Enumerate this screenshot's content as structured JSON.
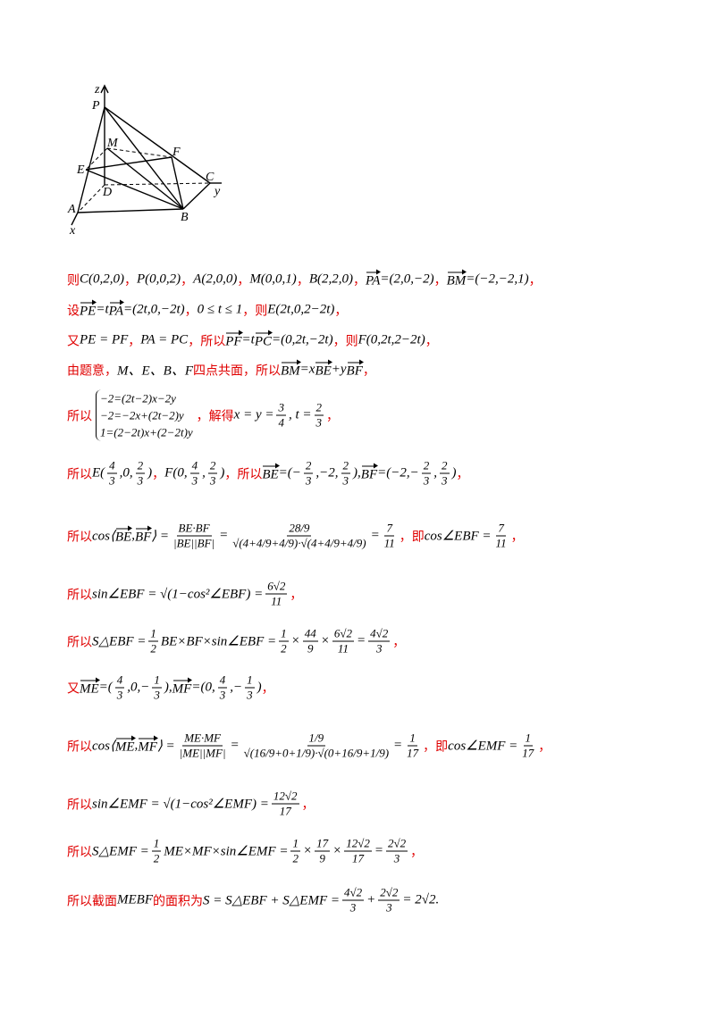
{
  "figure": {
    "labels": [
      "z",
      "P",
      "M",
      "F",
      "E",
      "C",
      "y",
      "D",
      "A",
      "B",
      "x"
    ]
  },
  "lines": [
    {
      "segs": [
        {
          "c": "则"
        },
        {
          "m": "C(0,2,0)"
        },
        {
          "c": "，"
        },
        {
          "m": "P(0,0,2)"
        },
        {
          "c": "，"
        },
        {
          "m": "A(2,0,0)"
        },
        {
          "c": "，"
        },
        {
          "m": "M(0,0,1)"
        },
        {
          "c": "，"
        },
        {
          "m": "B(2,2,0)"
        },
        {
          "c": "，"
        },
        {
          "v": "PA"
        },
        {
          "m": "=(2,0,−2)"
        },
        {
          "c": "，"
        },
        {
          "v": "BM"
        },
        {
          "m": "=(−2,−2,1)"
        },
        {
          "c": "，"
        }
      ]
    },
    {
      "segs": [
        {
          "c": "设"
        },
        {
          "v": "PE"
        },
        {
          "m": "=t"
        },
        {
          "v": "PA"
        },
        {
          "m": "=(2t,0,−2t)"
        },
        {
          "c": "，"
        },
        {
          "m": "0 ≤ t ≤ 1"
        },
        {
          "c": "，则"
        },
        {
          "m": "E(2t,0,2−2t)"
        },
        {
          "c": "，"
        }
      ]
    },
    {
      "segs": [
        {
          "c": "又"
        },
        {
          "m": "PE = PF"
        },
        {
          "c": "，"
        },
        {
          "m": "PA = PC"
        },
        {
          "c": "，所以"
        },
        {
          "v": "PF"
        },
        {
          "m": "=t"
        },
        {
          "v": "PC"
        },
        {
          "m": "=(0,2t,−2t)"
        },
        {
          "c": "，则"
        },
        {
          "m": "F(0,2t,2−2t)"
        },
        {
          "c": "，"
        }
      ]
    },
    {
      "segs": [
        {
          "c": "由题意，"
        },
        {
          "m": "M、E、B、F"
        },
        {
          "c": "四点共面，所以"
        },
        {
          "v": "BM"
        },
        {
          "m": "=x"
        },
        {
          "v": "BE"
        },
        {
          "m": "+y"
        },
        {
          "v": "BF"
        },
        {
          "c": "，"
        }
      ]
    },
    {
      "segs": [
        {
          "c": "所以"
        },
        {
          "sys": [
            "−2=(2t−2)x−2y",
            "−2=−2x+(2t−2)y",
            "1=(2−2t)x+(2−2t)y"
          ]
        },
        {
          "c": "，解得"
        },
        {
          "m": "x = y ="
        },
        {
          "n": "3",
          "d": "4"
        },
        {
          "m": ", t ="
        },
        {
          "n": "2",
          "d": "3"
        },
        {
          "c": "，"
        }
      ]
    },
    {
      "segs": [
        {
          "c": "所以"
        },
        {
          "m": "E("
        },
        {
          "n": "4",
          "d": "3"
        },
        {
          "m": ",0,"
        },
        {
          "n": "2",
          "d": "3"
        },
        {
          "m": ")"
        },
        {
          "c": "，"
        },
        {
          "m": "F(0,"
        },
        {
          "n": "4",
          "d": "3"
        },
        {
          "m": ","
        },
        {
          "n": "2",
          "d": "3"
        },
        {
          "m": ")"
        },
        {
          "c": "，所以"
        },
        {
          "v": "BE"
        },
        {
          "m": "=(−"
        },
        {
          "n": "2",
          "d": "3"
        },
        {
          "m": ",−2,"
        },
        {
          "n": "2",
          "d": "3"
        },
        {
          "m": "),"
        },
        {
          "v": "BF"
        },
        {
          "m": "=(−2,−"
        },
        {
          "n": "2",
          "d": "3"
        },
        {
          "m": ","
        },
        {
          "n": "2",
          "d": "3"
        },
        {
          "m": ")"
        },
        {
          "c": "，"
        }
      ]
    },
    {
      "segs": [
        {
          "c": "所以"
        },
        {
          "m": "cos⟨"
        },
        {
          "v": "BE"
        },
        {
          "m": ","
        },
        {
          "v": "BF"
        },
        {
          "m": "⟩ ="
        },
        {
          "n": "BE·BF",
          "d": "|BE||BF|"
        },
        {
          "m": "="
        },
        {
          "n": "28/9",
          "d": "√(4+4/9+4/9)·√(4+4/9+4/9)"
        },
        {
          "m": "="
        },
        {
          "n": "7",
          "d": "11"
        },
        {
          "c": "，即"
        },
        {
          "m": "cos∠EBF ="
        },
        {
          "n": "7",
          "d": "11"
        },
        {
          "c": "，"
        }
      ]
    },
    {
      "segs": [
        {
          "c": "所以"
        },
        {
          "m": "sin∠EBF = √(1−cos²∠EBF) ="
        },
        {
          "n": "6√2",
          "d": "11"
        },
        {
          "c": "，"
        }
      ]
    },
    {
      "segs": [
        {
          "c": "所以"
        },
        {
          "m": "S△EBF ="
        },
        {
          "n": "1",
          "d": "2"
        },
        {
          "m": "BE×BF×sin∠EBF ="
        },
        {
          "n": "1",
          "d": "2"
        },
        {
          "m": "×"
        },
        {
          "n": "44",
          "d": "9"
        },
        {
          "m": "×"
        },
        {
          "n": "6√2",
          "d": "11"
        },
        {
          "m": "="
        },
        {
          "n": "4√2",
          "d": "3"
        },
        {
          "c": "，"
        }
      ]
    },
    {
      "segs": [
        {
          "c": "又"
        },
        {
          "v": "ME"
        },
        {
          "m": "=("
        },
        {
          "n": "4",
          "d": "3"
        },
        {
          "m": ",0,−"
        },
        {
          "n": "1",
          "d": "3"
        },
        {
          "m": "),"
        },
        {
          "v": "MF"
        },
        {
          "m": "=(0,"
        },
        {
          "n": "4",
          "d": "3"
        },
        {
          "m": ",−"
        },
        {
          "n": "1",
          "d": "3"
        },
        {
          "m": ")"
        },
        {
          "c": "，"
        }
      ]
    },
    {
      "segs": [
        {
          "c": "所以"
        },
        {
          "m": "cos⟨"
        },
        {
          "v": "ME"
        },
        {
          "m": ","
        },
        {
          "v": "MF"
        },
        {
          "m": "⟩ ="
        },
        {
          "n": "ME·MF",
          "d": "|ME||MF|"
        },
        {
          "m": "="
        },
        {
          "n": "1/9",
          "d": "√(16/9+0+1/9)·√(0+16/9+1/9)"
        },
        {
          "m": "="
        },
        {
          "n": "1",
          "d": "17"
        },
        {
          "c": "，即"
        },
        {
          "m": "cos∠EMF ="
        },
        {
          "n": "1",
          "d": "17"
        },
        {
          "c": "，"
        }
      ]
    },
    {
      "segs": [
        {
          "c": "所以"
        },
        {
          "m": "sin∠EMF = √(1−cos²∠EMF) ="
        },
        {
          "n": "12√2",
          "d": "17"
        },
        {
          "c": "，"
        }
      ]
    },
    {
      "segs": [
        {
          "c": "所以"
        },
        {
          "m": "S△EMF ="
        },
        {
          "n": "1",
          "d": "2"
        },
        {
          "m": "ME×MF×sin∠EMF ="
        },
        {
          "n": "1",
          "d": "2"
        },
        {
          "m": "×"
        },
        {
          "n": "17",
          "d": "9"
        },
        {
          "m": "×"
        },
        {
          "n": "12√2",
          "d": "17"
        },
        {
          "m": "="
        },
        {
          "n": "2√2",
          "d": "3"
        },
        {
          "c": "，"
        }
      ]
    },
    {
      "segs": [
        {
          "c": "所以截面"
        },
        {
          "m": "MEBF"
        },
        {
          "c": "的面积为"
        },
        {
          "m": "S = S△EBF + S△EMF ="
        },
        {
          "n": "4√2",
          "d": "3"
        },
        {
          "m": "+"
        },
        {
          "n": "2√2",
          "d": "3"
        },
        {
          "m": "= 2√2."
        }
      ]
    }
  ]
}
